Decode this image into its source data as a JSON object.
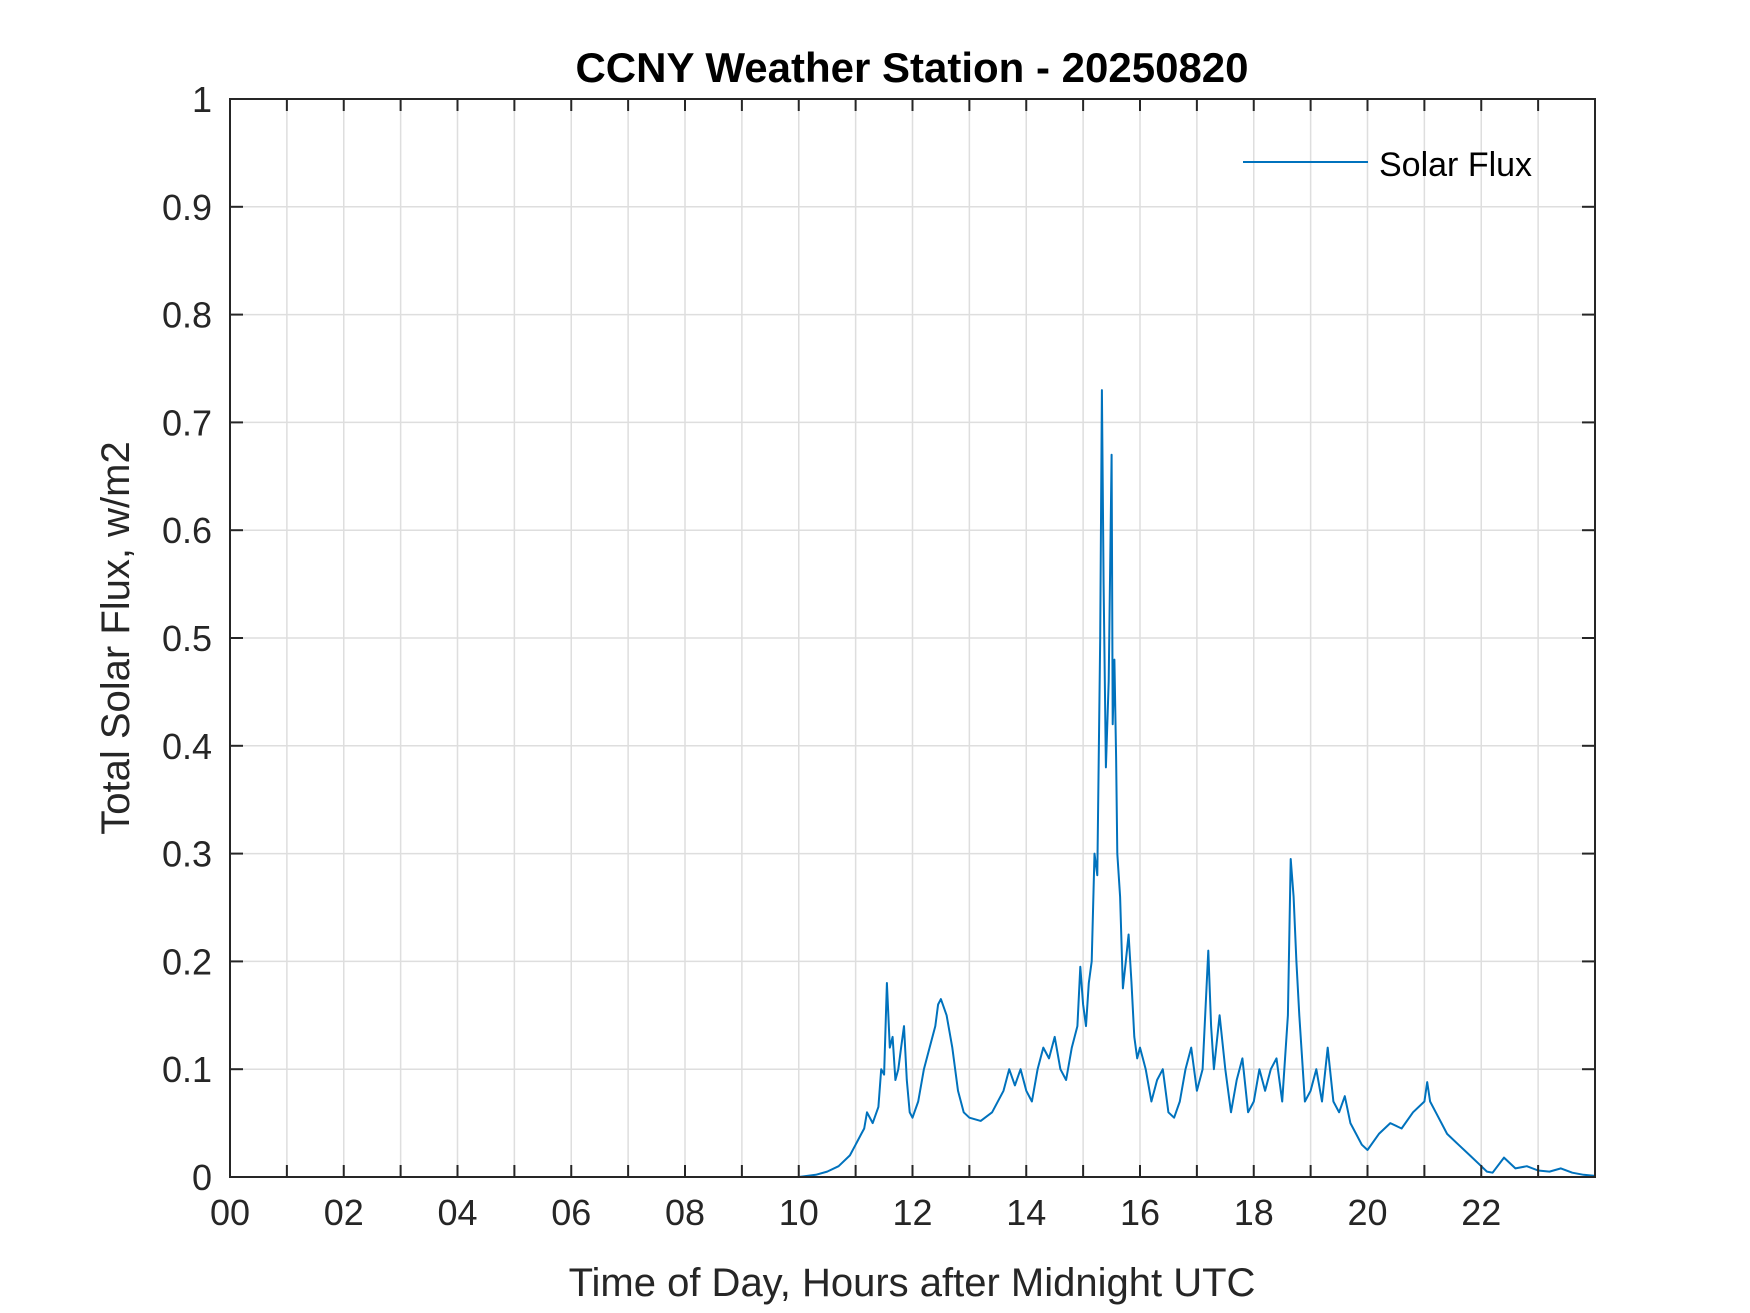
{
  "chart_data": {
    "type": "line",
    "title": "CCNY Weather Station - 20250820",
    "xlabel": "Time of Day, Hours after Midnight UTC",
    "ylabel": "Total Solar Flux, w/m2",
    "xlim": [
      0,
      24
    ],
    "ylim": [
      0,
      1
    ],
    "grid": true,
    "legend_position": "top-right",
    "x_ticks": [
      0,
      2,
      4,
      6,
      8,
      10,
      12,
      14,
      16,
      18,
      20,
      22
    ],
    "x_tick_labels": [
      "00",
      "02",
      "04",
      "06",
      "08",
      "10",
      "12",
      "14",
      "16",
      "18",
      "20",
      "22"
    ],
    "y_ticks": [
      0,
      0.1,
      0.2,
      0.3,
      0.4,
      0.5,
      0.6,
      0.7,
      0.8,
      0.9,
      1
    ],
    "y_tick_labels": [
      "0",
      "0.1",
      "0.2",
      "0.3",
      "0.4",
      "0.5",
      "0.6",
      "0.7",
      "0.8",
      "0.9",
      "1"
    ],
    "series": [
      {
        "name": "Solar Flux",
        "color": "#0072bd",
        "x": [
          0,
          10.0,
          10.3,
          10.5,
          10.7,
          10.9,
          11.0,
          11.1,
          11.15,
          11.2,
          11.3,
          11.4,
          11.45,
          11.5,
          11.55,
          11.6,
          11.65,
          11.7,
          11.75,
          11.8,
          11.85,
          11.9,
          11.95,
          12.0,
          12.1,
          12.2,
          12.3,
          12.4,
          12.45,
          12.5,
          12.6,
          12.7,
          12.8,
          12.9,
          13.0,
          13.2,
          13.4,
          13.6,
          13.7,
          13.8,
          13.9,
          14.0,
          14.1,
          14.2,
          14.3,
          14.4,
          14.5,
          14.6,
          14.7,
          14.8,
          14.9,
          14.95,
          15.0,
          15.05,
          15.1,
          15.15,
          15.2,
          15.25,
          15.3,
          15.33,
          15.36,
          15.4,
          15.45,
          15.5,
          15.52,
          15.55,
          15.58,
          15.6,
          15.65,
          15.7,
          15.75,
          15.8,
          15.85,
          15.9,
          15.95,
          16.0,
          16.1,
          16.2,
          16.3,
          16.4,
          16.5,
          16.6,
          16.7,
          16.8,
          16.9,
          17.0,
          17.1,
          17.2,
          17.25,
          17.3,
          17.4,
          17.5,
          17.6,
          17.7,
          17.8,
          17.9,
          18.0,
          18.1,
          18.2,
          18.3,
          18.4,
          18.5,
          18.6,
          18.65,
          18.7,
          18.75,
          18.8,
          18.9,
          19.0,
          19.1,
          19.2,
          19.3,
          19.4,
          19.5,
          19.6,
          19.7,
          19.8,
          19.9,
          20.0,
          20.2,
          20.4,
          20.6,
          20.8,
          21.0,
          21.05,
          21.1,
          21.2,
          21.4,
          21.6,
          21.8,
          22.0,
          22.1,
          22.2,
          22.4,
          22.6,
          22.8,
          23.0,
          23.2,
          23.4,
          23.6,
          23.8,
          24.0
        ],
        "values": [
          0,
          0,
          0.002,
          0.005,
          0.01,
          0.02,
          0.03,
          0.04,
          0.045,
          0.06,
          0.05,
          0.065,
          0.1,
          0.095,
          0.18,
          0.12,
          0.13,
          0.09,
          0.1,
          0.12,
          0.14,
          0.09,
          0.06,
          0.055,
          0.07,
          0.1,
          0.12,
          0.14,
          0.16,
          0.165,
          0.15,
          0.12,
          0.08,
          0.06,
          0.055,
          0.052,
          0.06,
          0.08,
          0.1,
          0.085,
          0.1,
          0.08,
          0.07,
          0.1,
          0.12,
          0.11,
          0.13,
          0.1,
          0.09,
          0.12,
          0.14,
          0.195,
          0.16,
          0.14,
          0.18,
          0.2,
          0.3,
          0.28,
          0.5,
          0.73,
          0.55,
          0.38,
          0.46,
          0.67,
          0.42,
          0.48,
          0.39,
          0.3,
          0.26,
          0.175,
          0.2,
          0.225,
          0.18,
          0.13,
          0.11,
          0.12,
          0.1,
          0.07,
          0.09,
          0.1,
          0.06,
          0.055,
          0.07,
          0.1,
          0.12,
          0.08,
          0.1,
          0.21,
          0.14,
          0.1,
          0.15,
          0.1,
          0.06,
          0.09,
          0.11,
          0.06,
          0.07,
          0.1,
          0.08,
          0.1,
          0.11,
          0.07,
          0.15,
          0.295,
          0.26,
          0.2,
          0.15,
          0.07,
          0.08,
          0.1,
          0.07,
          0.12,
          0.07,
          0.06,
          0.075,
          0.05,
          0.04,
          0.03,
          0.025,
          0.04,
          0.05,
          0.045,
          0.06,
          0.07,
          0.088,
          0.07,
          0.06,
          0.04,
          0.03,
          0.02,
          0.01,
          0.005,
          0.004,
          0.018,
          0.008,
          0.01,
          0.006,
          0.005,
          0.008,
          0.004,
          0.002,
          0.001
        ]
      }
    ]
  }
}
